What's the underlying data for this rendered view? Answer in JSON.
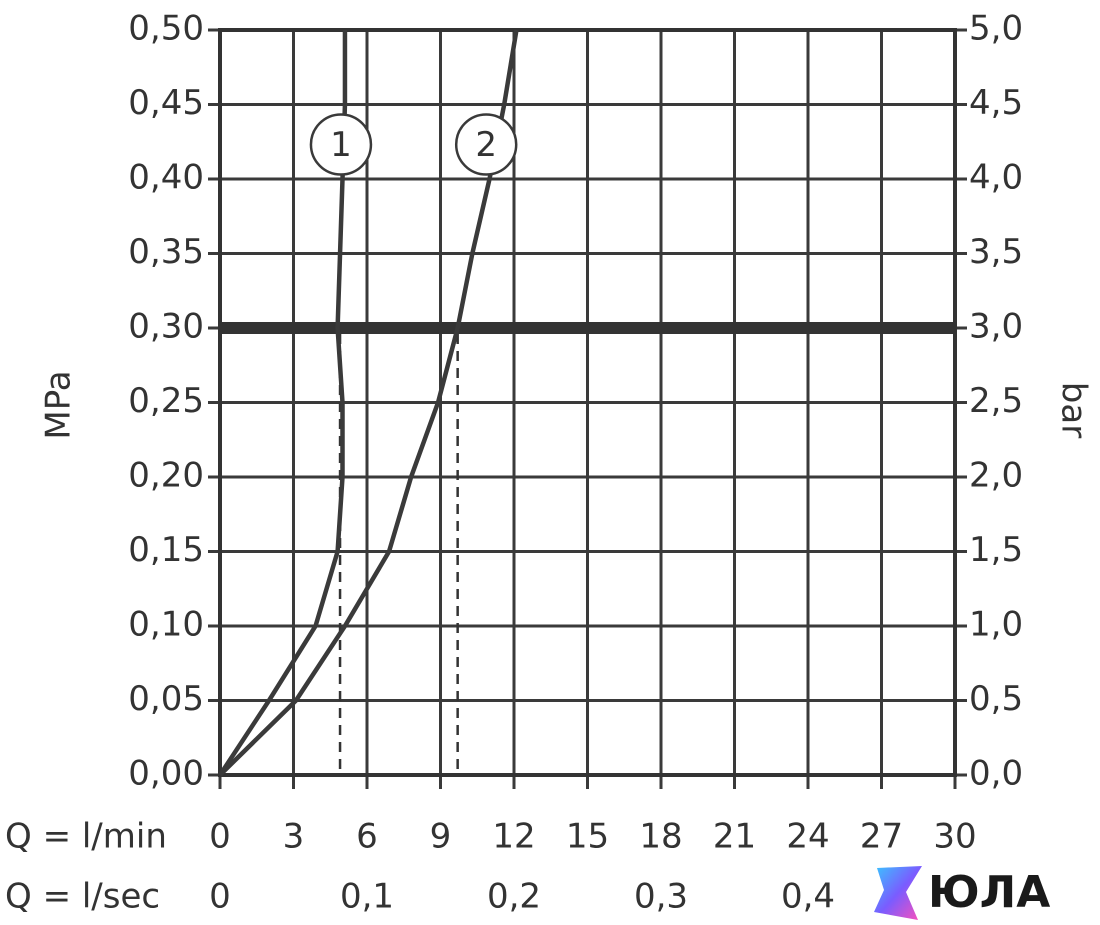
{
  "chart_data": {
    "type": "line",
    "y_label": "MPa",
    "y2_label": "bar",
    "x_row_label": "Q = l/min",
    "x2_row_label": "Q = l/sec",
    "xlim": [
      0,
      30
    ],
    "xticks": [
      0,
      3,
      6,
      9,
      12,
      15,
      18,
      21,
      24,
      27,
      30
    ],
    "x2lim": [
      0,
      0.5
    ],
    "x2ticks": [
      0,
      {
        "value": 0.1,
        "label": "0,1"
      },
      {
        "value": 0.2,
        "label": "0,2"
      },
      {
        "value": 0.3,
        "label": "0,3"
      },
      {
        "value": 0.4,
        "label": "0,4"
      }
    ],
    "ylim": [
      0,
      0.5
    ],
    "yticks": [
      {
        "value": 0,
        "label": "0,00"
      },
      {
        "value": 0.05,
        "label": "0,05"
      },
      {
        "value": 0.1,
        "label": "0,10"
      },
      {
        "value": 0.15,
        "label": "0,15"
      },
      {
        "value": 0.2,
        "label": "0,20"
      },
      {
        "value": 0.25,
        "label": "0,25"
      },
      {
        "value": 0.3,
        "label": "0,30"
      },
      {
        "value": 0.35,
        "label": "0,35"
      },
      {
        "value": 0.4,
        "label": "0,40"
      },
      {
        "value": 0.45,
        "label": "0,45"
      },
      {
        "value": 0.5,
        "label": "0,50"
      }
    ],
    "y2lim": [
      0,
      5
    ],
    "y2ticks": [
      {
        "value": 0,
        "label": "0,0"
      },
      {
        "value": 0.5,
        "label": "0,5"
      },
      {
        "value": 1,
        "label": "1,0"
      },
      {
        "value": 1.5,
        "label": "1,5"
      },
      {
        "value": 2,
        "label": "2,0"
      },
      {
        "value": 2.5,
        "label": "2,5"
      },
      {
        "value": 3,
        "label": "3,0"
      },
      {
        "value": 3.5,
        "label": "3,5"
      },
      {
        "value": 4,
        "label": "4,0"
      },
      {
        "value": 4.5,
        "label": "4,5"
      },
      {
        "value": 5,
        "label": "5,0"
      }
    ],
    "grid": true,
    "reference_y": 0.3,
    "dashed_x": [
      4.9,
      9.7
    ],
    "series": [
      {
        "name": "1",
        "color": "#3a3a3a",
        "x": [
          0,
          2.0,
          3.9,
          4.8,
          5.0,
          5.0,
          4.8,
          4.9,
          5.0,
          5.1,
          5.1
        ],
        "y": [
          0,
          0.05,
          0.1,
          0.15,
          0.2,
          0.25,
          0.3,
          0.35,
          0.4,
          0.45,
          0.5
        ]
      },
      {
        "name": "2",
        "color": "#3a3a3a",
        "x": [
          0,
          3.1,
          5.1,
          6.9,
          7.8,
          8.9,
          9.7,
          10.3,
          11.0,
          11.6,
          12.1
        ],
        "y": [
          0,
          0.05,
          0.1,
          0.15,
          0.2,
          0.25,
          0.3,
          0.35,
          0.4,
          0.45,
          0.5
        ]
      }
    ],
    "watermark": "ЮЛА"
  }
}
